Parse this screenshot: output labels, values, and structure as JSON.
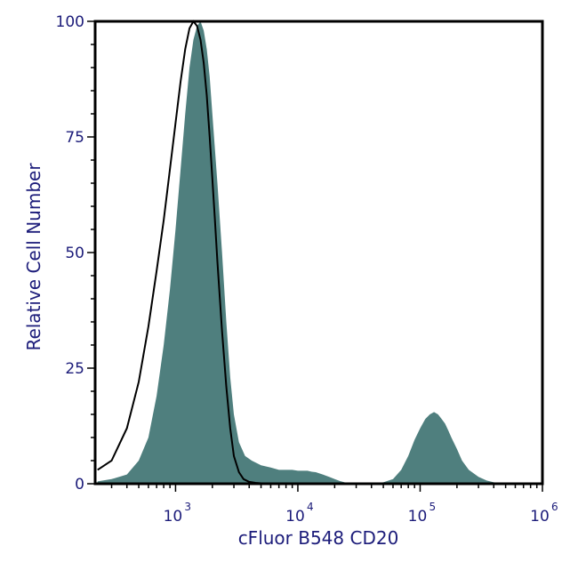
{
  "chart_data": {
    "type": "area",
    "xlabel": "cFluor B548 CD20",
    "ylabel": "Relative Cell Number",
    "x_scale": "log",
    "xlim": [
      220,
      1000000
    ],
    "ylim": [
      0,
      100
    ],
    "x_ticks": [
      {
        "value": 1000,
        "base": "10",
        "exp": "3"
      },
      {
        "value": 10000,
        "base": "10",
        "exp": "4"
      },
      {
        "value": 100000,
        "base": "10",
        "exp": "5"
      },
      {
        "value": 1000000,
        "base": "10",
        "exp": "6"
      }
    ],
    "y_ticks": [
      "0",
      "25",
      "50",
      "75",
      "100"
    ],
    "grid": false,
    "series": [
      {
        "style": "filled",
        "color": "#4f7f7e",
        "x": [
          230,
          300,
          400,
          500,
          600,
          700,
          800,
          900,
          1000,
          1100,
          1200,
          1300,
          1400,
          1500,
          1600,
          1700,
          1800,
          1900,
          2000,
          2200,
          2400,
          2600,
          2800,
          3000,
          3300,
          3700,
          4200,
          5000,
          6000,
          7000,
          8000,
          9000,
          10000,
          11000,
          12000,
          13000,
          14000,
          16000,
          18000,
          20000,
          22000,
          25000,
          30000,
          40000,
          50000,
          60000,
          70000,
          80000,
          90000,
          100000,
          110000,
          120000,
          130000,
          140000,
          150000,
          160000,
          170000,
          180000,
          200000,
          220000,
          250000,
          300000,
          350000,
          400000,
          500000,
          600000
        ],
        "y": [
          0.5,
          1,
          2,
          5,
          10,
          19,
          30,
          42,
          55,
          68,
          80,
          90,
          96,
          99,
          100,
          98,
          94,
          88,
          80,
          65,
          50,
          35,
          23,
          15,
          9,
          6,
          5,
          4,
          3.5,
          3,
          3,
          3,
          2.8,
          2.8,
          2.8,
          2.6,
          2.5,
          2,
          1.5,
          1,
          0.6,
          0.2,
          0,
          0,
          0.3,
          1,
          3,
          6,
          9.5,
          12,
          14,
          15,
          15.5,
          15,
          14,
          13,
          11.5,
          10,
          7.5,
          5,
          3,
          1.5,
          0.7,
          0.3,
          0,
          0
        ]
      },
      {
        "style": "outline",
        "color": "#000000",
        "x": [
          230,
          300,
          400,
          500,
          600,
          700,
          800,
          900,
          1000,
          1100,
          1200,
          1300,
          1400,
          1500,
          1600,
          1700,
          1800,
          1900,
          2000,
          2100,
          2200,
          2400,
          2600,
          2800,
          3000,
          3300,
          3600,
          4000,
          4500,
          5000,
          6000,
          7000,
          8000
        ],
        "y": [
          3,
          5,
          12,
          22,
          34,
          46,
          57,
          68,
          78,
          87,
          94,
          98.5,
          100,
          99,
          96,
          91,
          84,
          75,
          66,
          57,
          48,
          33,
          21,
          12,
          6,
          2.5,
          1,
          0.4,
          0.2,
          0.1,
          0,
          0,
          0
        ]
      }
    ]
  }
}
